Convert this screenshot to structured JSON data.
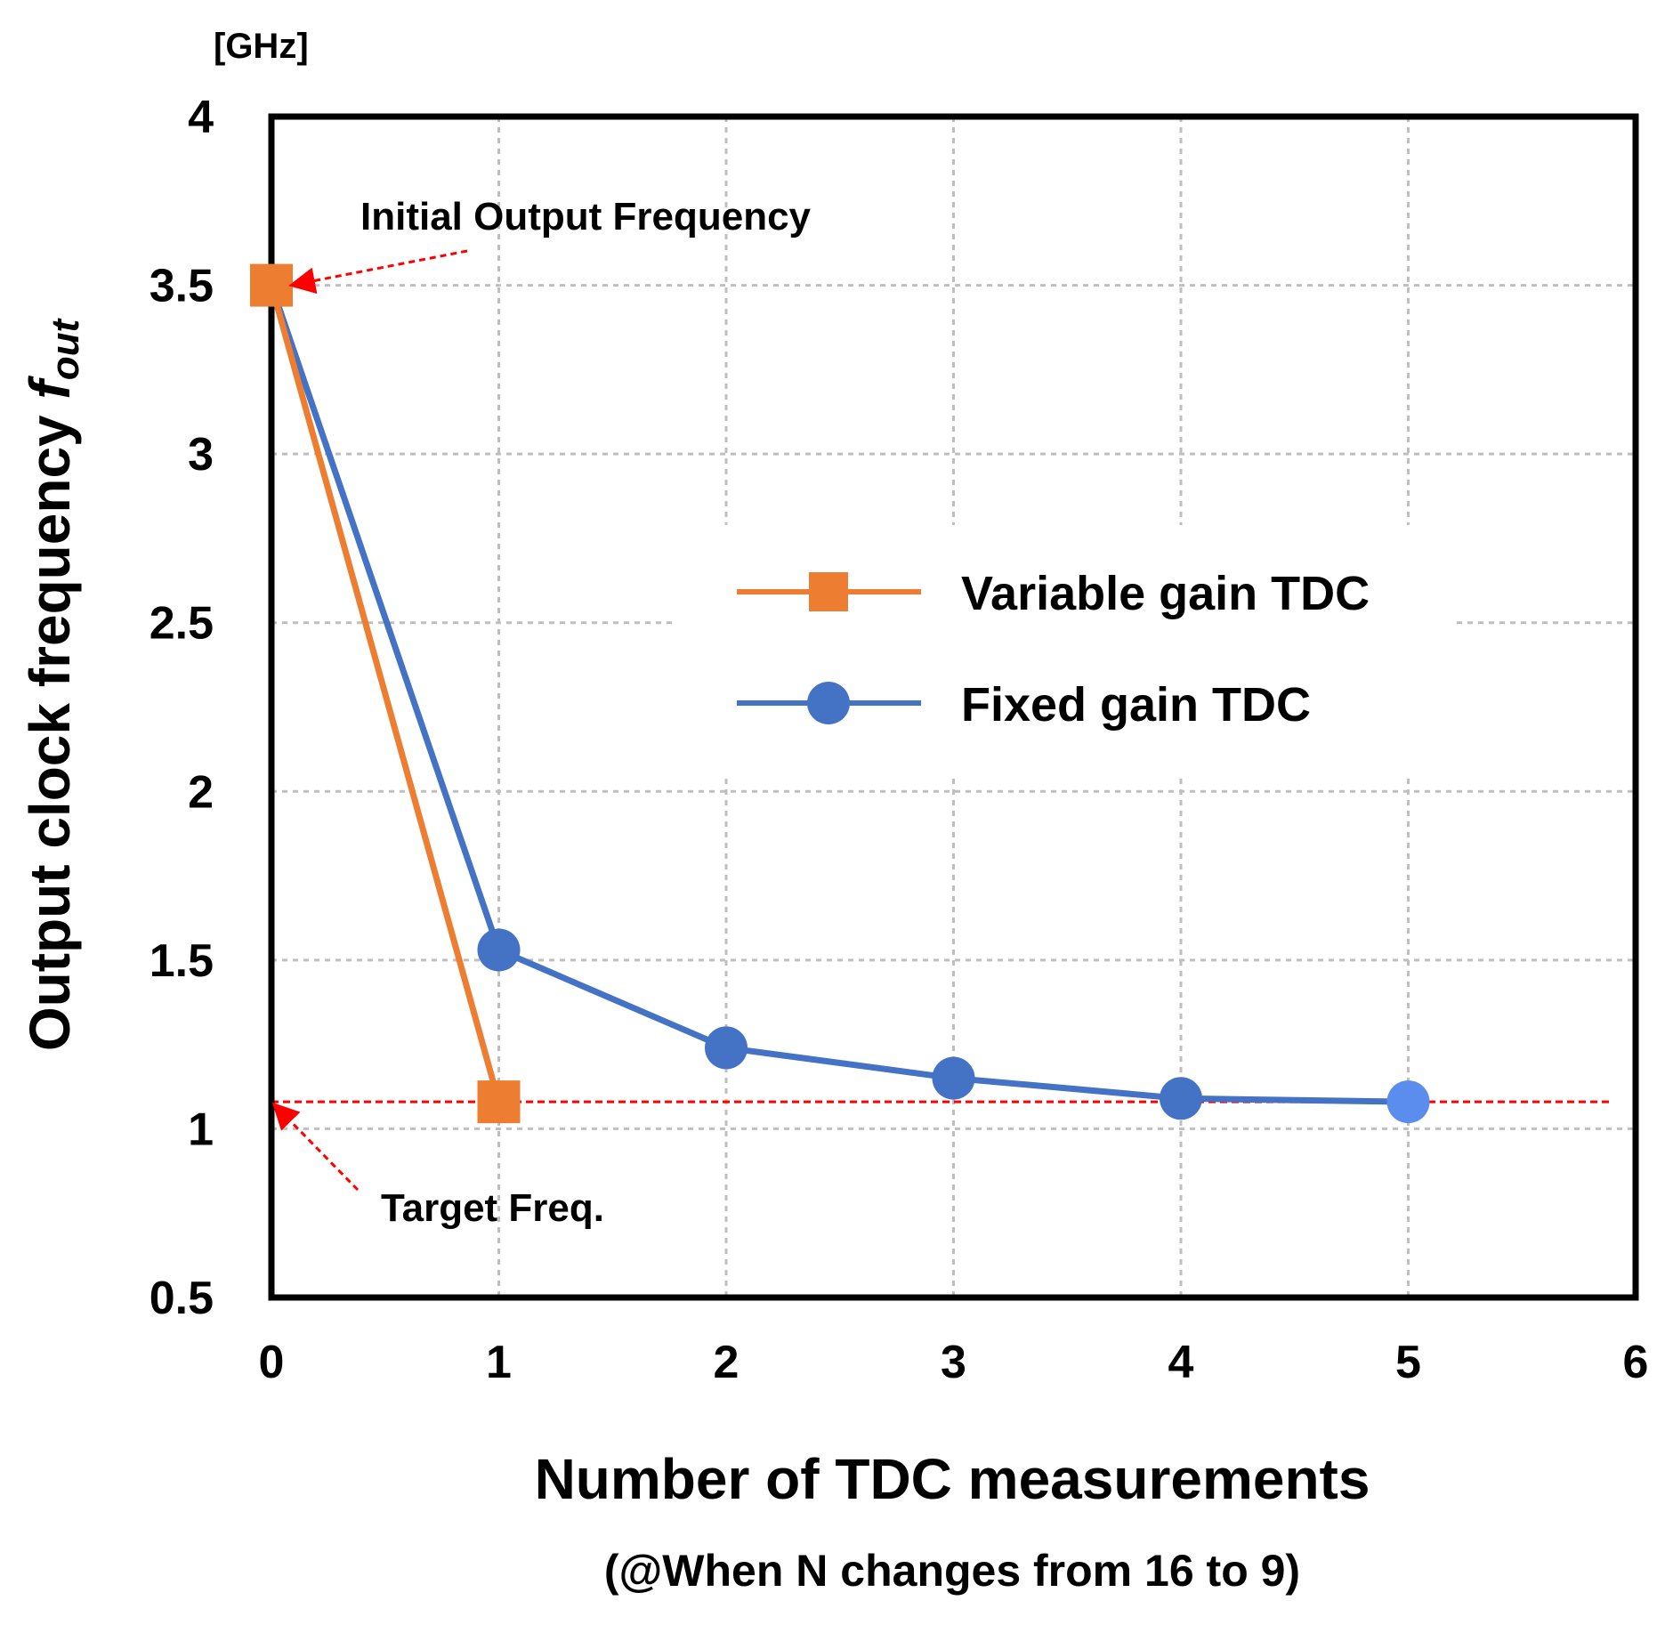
{
  "chart_data": {
    "type": "line",
    "unit_label": "[GHz]",
    "xlabel": "Number of TDC measurements",
    "xlabel_sub": "(@When N changes from 16 to 9)",
    "ylabel_main": "Output clock frequency ",
    "ylabel_symbol": "f",
    "ylabel_subscript": "out",
    "xlim": [
      0,
      6
    ],
    "ylim": [
      0.5,
      4
    ],
    "xticks": [
      "0",
      "1",
      "2",
      "3",
      "4",
      "5",
      "6"
    ],
    "yticks": [
      "0.5",
      "1",
      "1.5",
      "2",
      "2.5",
      "3",
      "3.5",
      "4"
    ],
    "grid": true,
    "legend_position": "center-right",
    "series": [
      {
        "name": "Variable gain TDC",
        "color": "#ed7d31",
        "marker": "square",
        "x": [
          0,
          1
        ],
        "y": [
          3.5,
          1.08
        ]
      },
      {
        "name": "Fixed gain TDC",
        "color": "#4472c4",
        "marker": "circle",
        "x": [
          0,
          1,
          2,
          3,
          4,
          5
        ],
        "y": [
          3.5,
          1.53,
          1.24,
          1.15,
          1.09,
          1.08
        ]
      }
    ],
    "target_frequency": 1.08,
    "annotations": {
      "initial": "Initial Output Frequency",
      "target": "Target Freq."
    }
  }
}
